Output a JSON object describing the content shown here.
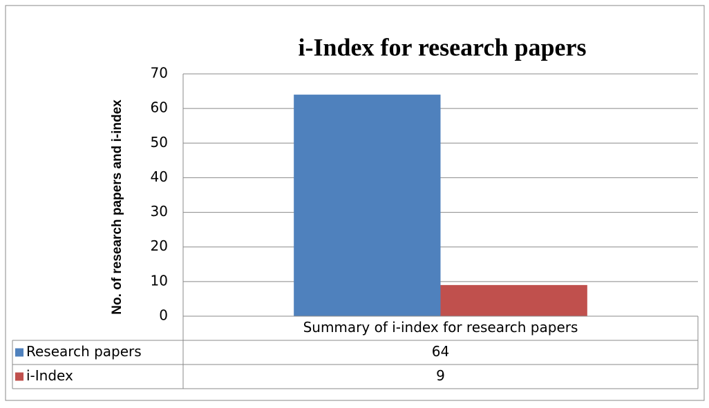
{
  "chart_data": {
    "type": "bar",
    "title": "i-Index for research papers",
    "y_label": "No. of research papers and i-index",
    "categories": [
      "Summary of i-index for research papers"
    ],
    "series": [
      {
        "name": "Research papers",
        "color": "#4f81bd",
        "values": [
          64
        ]
      },
      {
        "name": "i-Index",
        "color": "#c0504d",
        "values": [
          9
        ]
      }
    ],
    "ylim": [
      0,
      70
    ],
    "yticks": [
      0,
      10,
      20,
      30,
      40,
      50,
      60,
      70
    ],
    "grid": true,
    "legend": "data-table"
  }
}
